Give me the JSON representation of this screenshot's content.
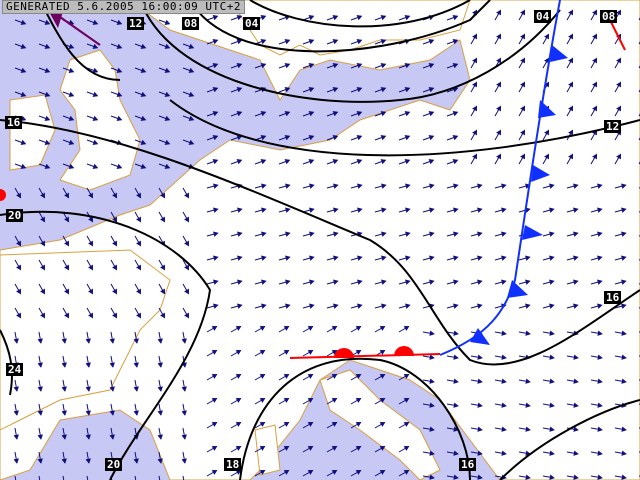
{
  "generated_stamp": "GENERATED 5.6.2005 16:00:09 UTC+2",
  "colors": {
    "sea": "#c8c8f4",
    "land": "#ffffff",
    "coast": "#d8a040",
    "isobar": "#000000",
    "cold_front": "#1030ff",
    "warm_front": "#ff0000",
    "occlusion": "#700060",
    "wind_arrow": "#101080"
  },
  "isobar_labels": [
    "12",
    "08",
    "04",
    "04",
    "08",
    "16",
    "20",
    "24",
    "12",
    "16",
    "20",
    "18",
    "16"
  ],
  "icons": [
    "wind-arrow-field",
    "cold-front",
    "warm-front",
    "occluded-front"
  ]
}
